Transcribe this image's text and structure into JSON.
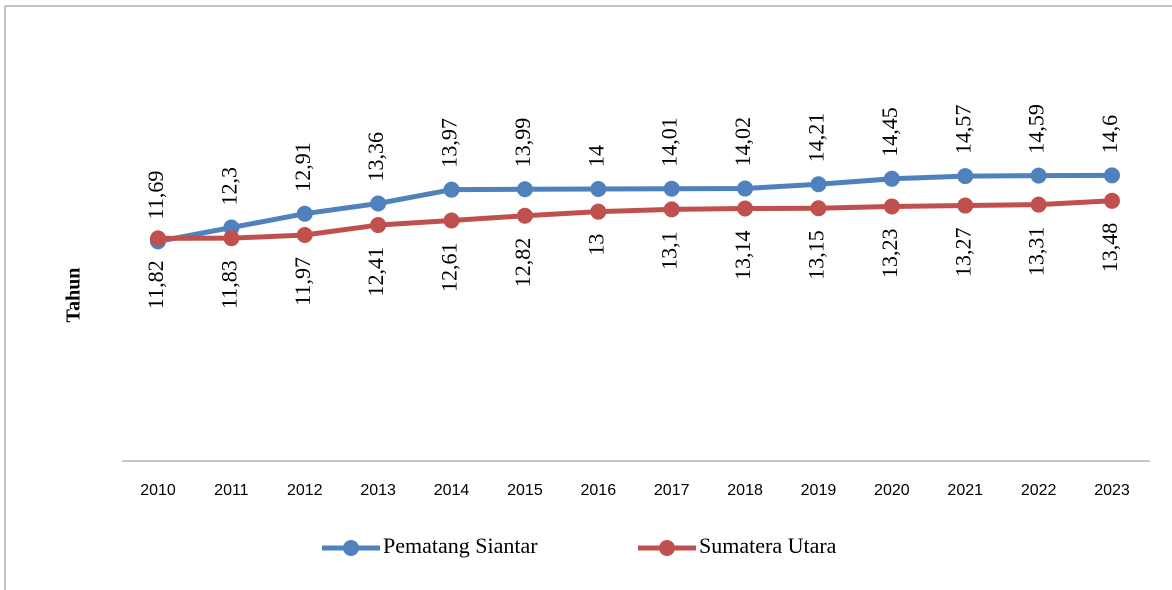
{
  "chart_data": {
    "type": "line",
    "y_label": "Tahun",
    "categories": [
      "2010",
      "2011",
      "2012",
      "2013",
      "2014",
      "2015",
      "2016",
      "2017",
      "2018",
      "2019",
      "2020",
      "2021",
      "2022",
      "2023"
    ],
    "series": [
      {
        "name": "Pematang Siantar",
        "color": "#4f81bd",
        "values": [
          11.69,
          12.3,
          12.91,
          13.36,
          13.97,
          13.99,
          14,
          14.01,
          14.02,
          14.21,
          14.45,
          14.57,
          14.59,
          14.6
        ],
        "value_labels": [
          "11,69",
          "12,3",
          "12,91",
          "13,36",
          "13,97",
          "13,99",
          "14",
          "14,01",
          "14,02",
          "14,21",
          "14,45",
          "14,57",
          "14,59",
          "14,6"
        ]
      },
      {
        "name": "Sumatera Utara",
        "color": "#c0504d",
        "values": [
          11.82,
          11.83,
          11.97,
          12.41,
          12.61,
          12.82,
          13,
          13.1,
          13.14,
          13.15,
          13.23,
          13.27,
          13.31,
          13.48
        ],
        "value_labels": [
          "11,82",
          "11,83",
          "11,97",
          "12,41",
          "12,61",
          "12,82",
          "13",
          "13,1",
          "13,14",
          "13,15",
          "13,23",
          "13,27",
          "13,31",
          "13,48"
        ]
      }
    ],
    "ylim": [
      2,
      20
    ],
    "legend": "bottom"
  }
}
